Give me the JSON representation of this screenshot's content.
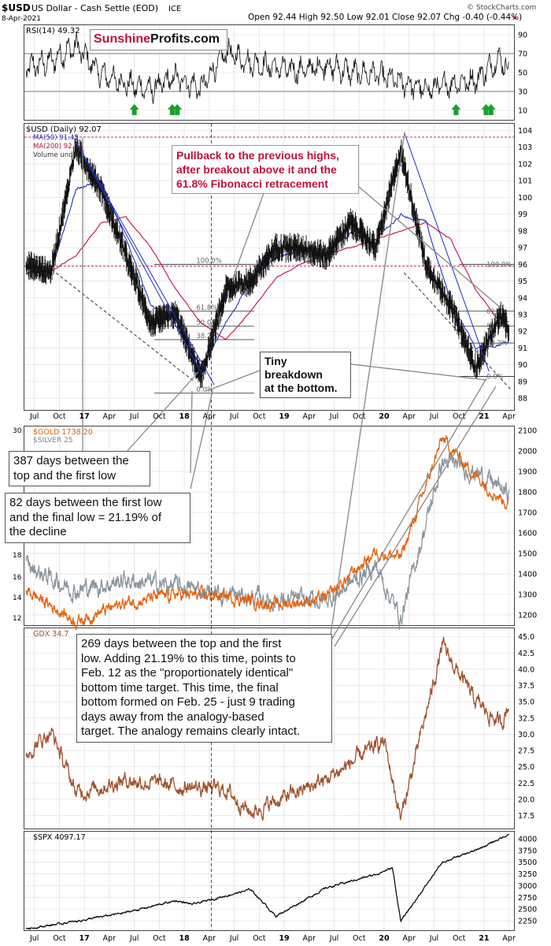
{
  "header": {
    "symbol": "$USD",
    "name": "US Dollar - Cash Settle (EOD)",
    "exchange": "ICE",
    "date": "8-Apr-2021",
    "ohlc": "Open 92.44  High 92.50  Low 92.01  Close 92.07  Chg -0.40 (-0.44%)",
    "copyright": "© StockCharts.com"
  },
  "logo": {
    "part1": "Sunshine",
    "part2": "Profits.com"
  },
  "rsi": {
    "label": "RSI(14) 49.32",
    "ticks": [
      "90",
      "70",
      "50",
      "30",
      "10"
    ],
    "levels": [
      30,
      70
    ]
  },
  "usd": {
    "label": "$USD (Daily) 92.07",
    "legend": [
      "MA(50) 91.45",
      "MA(200) 92.57",
      "Volume undef"
    ],
    "ticks": [
      "104",
      "103",
      "102",
      "101",
      "100",
      "99",
      "98",
      "97",
      "96",
      "95",
      "94",
      "93",
      "92",
      "91",
      "90",
      "89",
      "88"
    ],
    "fib_left": [
      "100.0%",
      "61.8%",
      "50.0%",
      "38.2%",
      "0.0%"
    ],
    "fib_right": [
      "100.0%",
      "61.8%",
      "50.0%",
      "38.2%",
      "0.0%"
    ]
  },
  "gold": {
    "label": "$GOLD 1738.20",
    "label2": "$SILVER 25",
    "ticks": [
      "2100",
      "2000",
      "1900",
      "1800",
      "1700",
      "1600",
      "1500",
      "1400",
      "1300",
      "1200"
    ],
    "left_ticks": [
      "30",
      "18",
      "16",
      "14",
      "12"
    ]
  },
  "gdx": {
    "label": "GDX 34.7",
    "ticks": [
      "45.0",
      "42.5",
      "40.0",
      "37.5",
      "35.0",
      "32.5",
      "30.0",
      "27.5",
      "25.0",
      "22.5",
      "20.0",
      "17.5"
    ]
  },
  "spx": {
    "label": "$SPX 4097.17",
    "ticks": [
      "4000",
      "3750",
      "3500",
      "3250",
      "3000",
      "2750",
      "2500",
      "2250"
    ]
  },
  "x_axis": [
    "Jul",
    "Oct",
    "17",
    "Apr",
    "Jul",
    "Oct",
    "18",
    "Apr",
    "Jul",
    "Oct",
    "19",
    "Apr",
    "Jul",
    "Oct",
    "20",
    "Apr",
    "Jul",
    "Oct",
    "21",
    "Apr"
  ],
  "callouts": {
    "pullback": [
      "Pullback to the previous highs,",
      "after breakout above it and the",
      "61.8% Fibonacci retracement"
    ],
    "tiny": [
      "Tiny breakdown",
      "at the bottom."
    ],
    "days387": [
      "387 days between the",
      "top and the first low"
    ],
    "days82": [
      "82 days between the first low",
      "and the final low = 21.19% of",
      "the decline"
    ],
    "days269": [
      "269 days between the top and the first",
      "low. Adding 21.19% to this time, points to",
      "Feb. 12 as the \"proportionately identical\"",
      "bottom time target. This time, the final",
      "bottom formed on Feb. 25 - just 9 trading",
      "days away from the analogy-based",
      "target. The analogy remains clearly intact."
    ]
  },
  "colors": {
    "usd_bars": "#111111",
    "ma50": "#1a2fbf",
    "ma200": "#c0103a",
    "gold": "#e8620c",
    "silver": "#8a959c",
    "gdx": "#a0522d",
    "spx": "#111111",
    "arrow": "#18a02c",
    "accent_red": "#c0103a"
  },
  "chart_data": [
    {
      "type": "line",
      "title": "RSI(14) 49.32",
      "ylim": [
        0,
        100
      ],
      "x": [
        "2016-06",
        "2016-09",
        "2016-12",
        "2017-03",
        "2017-06",
        "2017-09",
        "2017-12",
        "2018-03",
        "2018-06",
        "2018-09",
        "2018-12",
        "2019-03",
        "2019-06",
        "2019-09",
        "2019-12",
        "2020-03",
        "2020-06",
        "2020-09",
        "2020-12",
        "2021-03",
        "2021-04"
      ],
      "series": [
        {
          "name": "RSI(14)",
          "values": [
            55,
            62,
            78,
            48,
            38,
            32,
            45,
            33,
            72,
            60,
            55,
            52,
            58,
            50,
            48,
            40,
            32,
            38,
            42,
            66,
            49
          ]
        }
      ]
    },
    {
      "type": "line",
      "title": "$USD (Daily) 92.07",
      "ylim": [
        88,
        104
      ],
      "x": [
        "2016-06",
        "2016-09",
        "2016-12",
        "2017-03",
        "2017-06",
        "2017-09",
        "2017-12",
        "2018-03",
        "2018-06",
        "2018-09",
        "2018-12",
        "2019-03",
        "2019-06",
        "2019-09",
        "2019-12",
        "2020-03",
        "2020-06",
        "2020-09",
        "2020-12",
        "2021-03",
        "2021-04"
      ],
      "series": [
        {
          "name": "$USD",
          "values": [
            96.0,
            95.5,
            103.0,
            100.5,
            96.5,
            92.5,
            93.0,
            89.2,
            94.5,
            95.0,
            97.0,
            97.0,
            96.5,
            98.5,
            97.0,
            102.8,
            96.0,
            93.5,
            89.8,
            93.0,
            92.07
          ]
        },
        {
          "name": "MA(50)",
          "values": [
            95.5,
            95.6,
            100.5,
            101.0,
            97.5,
            93.5,
            92.8,
            89.8,
            92.5,
            95.0,
            96.5,
            96.8,
            96.8,
            97.8,
            97.5,
            99.0,
            98.5,
            93.8,
            91.0,
            91.2,
            91.45
          ]
        },
        {
          "name": "MA(200)",
          "values": [
            95.5,
            95.6,
            96.5,
            98.5,
            98.8,
            97.0,
            94.5,
            92.5,
            91.5,
            93.2,
            95.2,
            96.0,
            96.6,
            97.0,
            97.5,
            98.0,
            98.5,
            97.5,
            94.5,
            92.5,
            92.57
          ]
        }
      ]
    },
    {
      "type": "line",
      "title": "$GOLD 1738.20",
      "ylim": [
        1150,
        2100
      ],
      "x": [
        "2016-06",
        "2016-12",
        "2017-06",
        "2017-12",
        "2018-06",
        "2018-12",
        "2019-06",
        "2019-12",
        "2020-03",
        "2020-08",
        "2020-12",
        "2021-04"
      ],
      "series": [
        {
          "name": "$GOLD",
          "values": [
            1320,
            1170,
            1260,
            1300,
            1290,
            1250,
            1280,
            1510,
            1480,
            2060,
            1880,
            1738
          ]
        },
        {
          "name": "$SILVER",
          "values": [
            1440,
            1320,
            1370,
            1340,
            1300,
            1270,
            1270,
            1440,
            1180,
            1950,
            1900,
            1790
          ]
        }
      ]
    },
    {
      "type": "line",
      "title": "GDX 34.7",
      "ylim": [
        16,
        45
      ],
      "x": [
        "2016-06",
        "2016-09",
        "2016-12",
        "2017-06",
        "2017-12",
        "2018-06",
        "2018-09",
        "2019-06",
        "2020-01",
        "2020-03",
        "2020-08",
        "2020-12",
        "2021-03",
        "2021-04"
      ],
      "series": [
        {
          "name": "GDX",
          "values": [
            27.0,
            30.5,
            21.0,
            23.0,
            22.0,
            21.5,
            18.0,
            23.0,
            29.0,
            17.0,
            43.5,
            35.0,
            31.5,
            34.7
          ]
        }
      ]
    },
    {
      "type": "line",
      "title": "$SPX 4097.17",
      "ylim": [
        2050,
        4150
      ],
      "x": [
        "2016-06",
        "2016-12",
        "2017-06",
        "2017-12",
        "2018-02",
        "2018-09",
        "2018-12",
        "2019-06",
        "2019-12",
        "2020-02",
        "2020-03",
        "2020-08",
        "2020-12",
        "2021-04"
      ],
      "series": [
        {
          "name": "$SPX",
          "values": [
            2080,
            2240,
            2430,
            2680,
            2600,
            2920,
            2350,
            2950,
            3240,
            3380,
            2240,
            3500,
            3750,
            4097
          ]
        }
      ]
    }
  ]
}
